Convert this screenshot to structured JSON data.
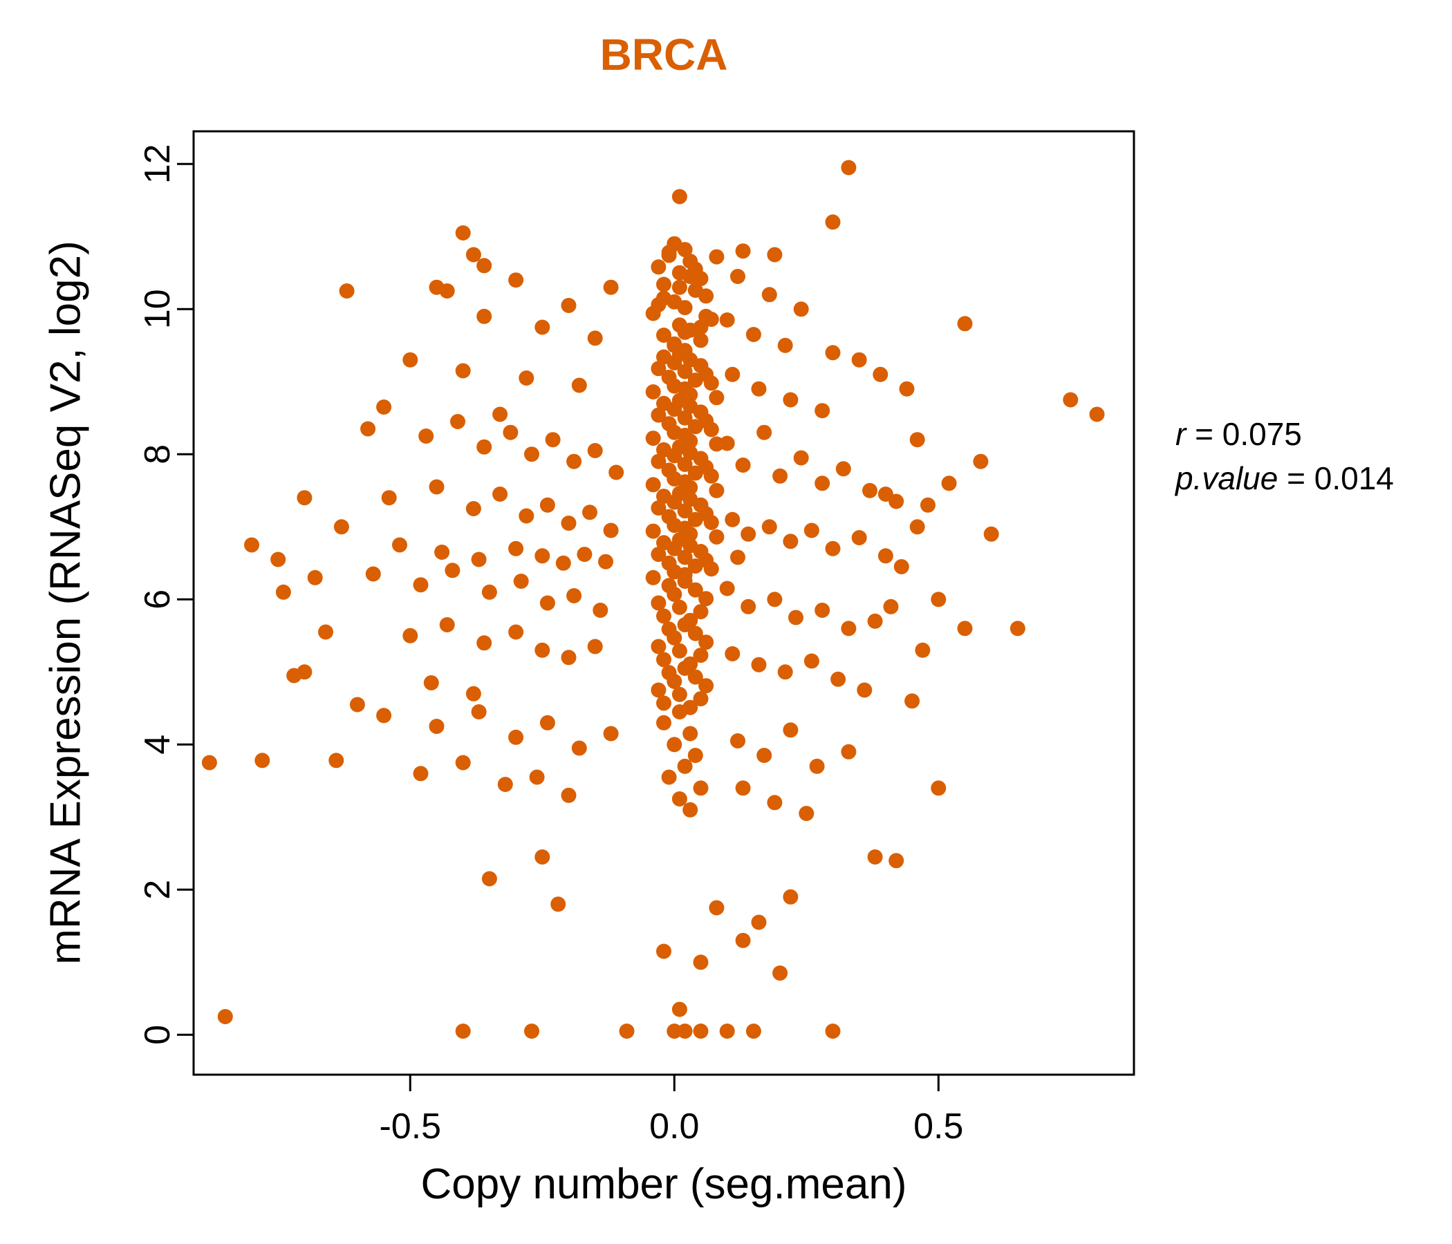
{
  "chart_data": {
    "type": "scatter",
    "title": "BRCA",
    "title_color": "#D95F02",
    "xlabel": "Copy number (seg.mean)",
    "ylabel": "mRNA Expression (RNASeq V2, log2)",
    "xlim": [
      -0.91,
      0.87
    ],
    "ylim": [
      -0.55,
      12.45
    ],
    "xticks": {
      "values": [
        -0.5,
        0.0,
        0.5
      ],
      "labels": [
        "-0.5",
        "0.0",
        "0.5"
      ]
    },
    "yticks": {
      "values": [
        0,
        2,
        4,
        6,
        8,
        10,
        12
      ],
      "labels": [
        "0",
        "2",
        "4",
        "6",
        "8",
        "10",
        "12"
      ]
    },
    "grid": false,
    "legend": "none",
    "point_color": "#D95F02",
    "annotation": {
      "r": 0.075,
      "p": 0.014,
      "r_label": "r",
      "r_value": " = 0.075",
      "p_label": "p.value",
      "p_value": " = 0.014"
    },
    "points": [
      [
        0,
        10.9
      ],
      [
        0.02,
        10.82
      ],
      [
        -0.01,
        10.74
      ],
      [
        0.03,
        10.66
      ],
      [
        -0.03,
        10.58
      ],
      [
        0.01,
        10.5
      ],
      [
        0.05,
        10.42
      ],
      [
        -0.02,
        10.34
      ],
      [
        0.04,
        10.26
      ],
      [
        0.06,
        10.18
      ],
      [
        0,
        10.1
      ],
      [
        0.02,
        10.02
      ],
      [
        -0.04,
        9.94
      ],
      [
        0.07,
        9.86
      ],
      [
        0.01,
        9.78
      ],
      [
        0.03,
        9.71
      ],
      [
        -0.02,
        9.64
      ],
      [
        0.05,
        9.57
      ],
      [
        0,
        9.5
      ],
      [
        0.02,
        9.43
      ],
      [
        -0.01,
        10.78
      ],
      [
        0.04,
        10.55
      ],
      [
        0.01,
        10.3
      ],
      [
        -0.03,
        10.06
      ],
      [
        0.06,
        9.9
      ],
      [
        0.02,
        9.68
      ],
      [
        0,
        9.52
      ],
      [
        0.03,
        10.45
      ],
      [
        -0.02,
        10.15
      ],
      [
        0.05,
        9.75
      ],
      [
        0.01,
        9.38
      ],
      [
        -0.02,
        9.34
      ],
      [
        0.03,
        9.3
      ],
      [
        0,
        9.26
      ],
      [
        0.05,
        9.22
      ],
      [
        -0.03,
        9.18
      ],
      [
        0.02,
        9.14
      ],
      [
        0.06,
        9.1
      ],
      [
        -0.01,
        9.06
      ],
      [
        0.04,
        9.02
      ],
      [
        0.07,
        8.98
      ],
      [
        0,
        8.94
      ],
      [
        0.02,
        8.9
      ],
      [
        -0.04,
        8.86
      ],
      [
        0.03,
        8.82
      ],
      [
        0.08,
        8.78
      ],
      [
        0.01,
        8.74
      ],
      [
        -0.02,
        8.7
      ],
      [
        0.03,
        8.66
      ],
      [
        0,
        8.62
      ],
      [
        0.05,
        8.58
      ],
      [
        -0.03,
        8.54
      ],
      [
        0.02,
        8.5
      ],
      [
        0.06,
        8.46
      ],
      [
        -0.01,
        8.42
      ],
      [
        0.04,
        8.38
      ],
      [
        0.07,
        8.34
      ],
      [
        0,
        8.3
      ],
      [
        0.02,
        8.26
      ],
      [
        -0.04,
        8.22
      ],
      [
        0.03,
        8.18
      ],
      [
        0.08,
        8.14
      ],
      [
        0.01,
        8.1
      ],
      [
        -0.02,
        8.06
      ],
      [
        0.03,
        8.02
      ],
      [
        0,
        7.98
      ],
      [
        0.05,
        7.94
      ],
      [
        -0.03,
        7.9
      ],
      [
        0.02,
        7.86
      ],
      [
        0.06,
        7.82
      ],
      [
        -0.01,
        7.78
      ],
      [
        0.04,
        7.74
      ],
      [
        0.07,
        7.7
      ],
      [
        0,
        7.66
      ],
      [
        0.02,
        7.62
      ],
      [
        -0.04,
        7.58
      ],
      [
        0.03,
        7.54
      ],
      [
        0.08,
        7.5
      ],
      [
        0.01,
        7.46
      ],
      [
        -0.02,
        7.42
      ],
      [
        0.03,
        7.38
      ],
      [
        0,
        7.34
      ],
      [
        0.05,
        7.3
      ],
      [
        -0.03,
        7.26
      ],
      [
        0.02,
        7.22
      ],
      [
        0.06,
        7.18
      ],
      [
        -0.01,
        7.14
      ],
      [
        0.04,
        7.1
      ],
      [
        0.07,
        7.06
      ],
      [
        0,
        7.02
      ],
      [
        0.02,
        6.98
      ],
      [
        -0.04,
        6.94
      ],
      [
        0.03,
        6.9
      ],
      [
        0.08,
        6.86
      ],
      [
        0.01,
        6.82
      ],
      [
        -0.02,
        6.78
      ],
      [
        0.03,
        6.74
      ],
      [
        0,
        6.7
      ],
      [
        0.05,
        6.66
      ],
      [
        -0.03,
        6.62
      ],
      [
        0.02,
        6.58
      ],
      [
        0.06,
        6.54
      ],
      [
        -0.01,
        6.5
      ],
      [
        0.04,
        6.46
      ],
      [
        0.07,
        6.42
      ],
      [
        0,
        6.38
      ],
      [
        0.02,
        6.34
      ],
      [
        -0.04,
        6.3
      ],
      [
        0.02,
        6.25
      ],
      [
        -0.01,
        6.19
      ],
      [
        0.04,
        6.13
      ],
      [
        0,
        6.07
      ],
      [
        0.06,
        6.01
      ],
      [
        -0.03,
        5.95
      ],
      [
        0.01,
        5.89
      ],
      [
        0.05,
        5.83
      ],
      [
        -0.02,
        5.77
      ],
      [
        0.03,
        5.71
      ],
      [
        0.02,
        5.65
      ],
      [
        -0.01,
        5.59
      ],
      [
        0.04,
        5.53
      ],
      [
        0,
        5.47
      ],
      [
        0.06,
        5.41
      ],
      [
        -0.03,
        5.35
      ],
      [
        0.01,
        5.29
      ],
      [
        0.05,
        5.23
      ],
      [
        -0.02,
        5.17
      ],
      [
        0.03,
        5.11
      ],
      [
        0.02,
        5.05
      ],
      [
        -0.01,
        4.99
      ],
      [
        0.04,
        4.93
      ],
      [
        0,
        4.87
      ],
      [
        0.06,
        4.81
      ],
      [
        -0.03,
        4.75
      ],
      [
        0.01,
        4.69
      ],
      [
        0.05,
        4.63
      ],
      [
        -0.02,
        4.57
      ],
      [
        0.03,
        4.51
      ],
      [
        0.01,
        4.45
      ],
      [
        -0.02,
        4.3
      ],
      [
        0.03,
        4.15
      ],
      [
        0,
        4
      ],
      [
        0.04,
        3.85
      ],
      [
        0.02,
        3.7
      ],
      [
        -0.01,
        3.55
      ],
      [
        0.05,
        3.4
      ],
      [
        0.01,
        3.25
      ],
      [
        0.03,
        3.1
      ],
      [
        -0.43,
        10.25
      ],
      [
        -0.3,
        10.4
      ],
      [
        -0.2,
        10.05
      ],
      [
        -0.12,
        10.3
      ],
      [
        0.12,
        10.45
      ],
      [
        0.18,
        10.2
      ],
      [
        0.24,
        10
      ],
      [
        -0.36,
        9.9
      ],
      [
        -0.25,
        9.75
      ],
      [
        -0.15,
        9.6
      ],
      [
        0.1,
        9.85
      ],
      [
        0.15,
        9.65
      ],
      [
        0.21,
        9.5
      ],
      [
        0.3,
        9.4
      ],
      [
        -0.5,
        9.3
      ],
      [
        -0.4,
        9.15
      ],
      [
        -0.28,
        9.05
      ],
      [
        -0.18,
        8.95
      ],
      [
        0.11,
        9.1
      ],
      [
        0.16,
        8.9
      ],
      [
        0.22,
        8.75
      ],
      [
        0.28,
        8.6
      ],
      [
        0.35,
        9.3
      ],
      [
        -0.55,
        8.65
      ],
      [
        -0.33,
        8.55
      ],
      [
        -0.58,
        8.35
      ],
      [
        -0.47,
        8.25
      ],
      [
        -0.41,
        8.45
      ],
      [
        -0.36,
        8.1
      ],
      [
        -0.31,
        8.3
      ],
      [
        -0.27,
        8
      ],
      [
        -0.23,
        8.2
      ],
      [
        -0.19,
        7.9
      ],
      [
        -0.15,
        8.05
      ],
      [
        -0.11,
        7.75
      ],
      [
        0.1,
        8.15
      ],
      [
        0.13,
        7.85
      ],
      [
        0.17,
        8.3
      ],
      [
        0.2,
        7.7
      ],
      [
        0.24,
        7.95
      ],
      [
        0.28,
        7.6
      ],
      [
        0.32,
        7.8
      ],
      [
        0.37,
        7.5
      ],
      [
        0.42,
        7.35
      ],
      [
        -0.54,
        7.4
      ],
      [
        -0.45,
        7.55
      ],
      [
        -0.38,
        7.25
      ],
      [
        -0.33,
        7.45
      ],
      [
        -0.28,
        7.15
      ],
      [
        -0.24,
        7.3
      ],
      [
        -0.2,
        7.05
      ],
      [
        -0.16,
        7.2
      ],
      [
        -0.12,
        6.95
      ],
      [
        0.11,
        7.1
      ],
      [
        0.14,
        6.9
      ],
      [
        0.18,
        7
      ],
      [
        0.22,
        6.8
      ],
      [
        0.26,
        6.95
      ],
      [
        0.3,
        6.7
      ],
      [
        0.35,
        6.85
      ],
      [
        0.4,
        6.6
      ],
      [
        -0.52,
        6.75
      ],
      [
        -0.44,
        6.65
      ],
      [
        -0.37,
        6.55
      ],
      [
        -0.3,
        6.7
      ],
      [
        -0.25,
        6.6
      ],
      [
        -0.21,
        6.5
      ],
      [
        -0.17,
        6.62
      ],
      [
        -0.13,
        6.52
      ],
      [
        0.12,
        6.58
      ],
      [
        -0.57,
        6.35
      ],
      [
        -0.48,
        6.2
      ],
      [
        -0.42,
        6.4
      ],
      [
        -0.35,
        6.1
      ],
      [
        -0.29,
        6.25
      ],
      [
        -0.24,
        5.95
      ],
      [
        -0.19,
        6.05
      ],
      [
        -0.14,
        5.85
      ],
      [
        0.1,
        6.15
      ],
      [
        0.14,
        5.9
      ],
      [
        0.19,
        6
      ],
      [
        0.23,
        5.75
      ],
      [
        0.28,
        5.85
      ],
      [
        0.33,
        5.6
      ],
      [
        0.38,
        5.7
      ],
      [
        -0.5,
        5.5
      ],
      [
        -0.43,
        5.65
      ],
      [
        -0.36,
        5.4
      ],
      [
        -0.3,
        5.55
      ],
      [
        -0.25,
        5.3
      ],
      [
        -0.2,
        5.2
      ],
      [
        -0.15,
        5.35
      ],
      [
        0.11,
        5.25
      ],
      [
        0.16,
        5.1
      ],
      [
        0.21,
        5
      ],
      [
        0.26,
        5.15
      ],
      [
        0.31,
        4.9
      ],
      [
        0.36,
        4.75
      ],
      [
        -0.46,
        4.85
      ],
      [
        -0.38,
        4.7
      ],
      [
        -0.55,
        4.4
      ],
      [
        -0.45,
        4.25
      ],
      [
        -0.37,
        4.45
      ],
      [
        -0.3,
        4.1
      ],
      [
        -0.24,
        4.3
      ],
      [
        -0.18,
        3.95
      ],
      [
        -0.12,
        4.15
      ],
      [
        0.12,
        4.05
      ],
      [
        0.17,
        3.85
      ],
      [
        0.22,
        4.2
      ],
      [
        0.27,
        3.7
      ],
      [
        0.33,
        3.9
      ],
      [
        -0.48,
        3.6
      ],
      [
        -0.4,
        3.75
      ],
      [
        -0.32,
        3.45
      ],
      [
        -0.26,
        3.55
      ],
      [
        -0.2,
        3.3
      ],
      [
        0.13,
        3.4
      ],
      [
        0.19,
        3.2
      ],
      [
        0.25,
        3.05
      ],
      [
        -0.88,
        3.75
      ],
      [
        -0.8,
        6.75
      ],
      [
        -0.78,
        3.78
      ],
      [
        -0.74,
        6.1
      ],
      [
        -0.72,
        4.95
      ],
      [
        -0.7,
        7.4
      ],
      [
        -0.68,
        6.3
      ],
      [
        -0.66,
        5.55
      ],
      [
        -0.64,
        3.78
      ],
      [
        -0.75,
        6.55
      ],
      [
        -0.62,
        10.25
      ],
      [
        -0.6,
        4.55
      ],
      [
        -0.85,
        0.25
      ],
      [
        -0.7,
        5
      ],
      [
        -0.63,
        7
      ],
      [
        0.46,
        8.2
      ],
      [
        0.48,
        7.3
      ],
      [
        0.5,
        6
      ],
      [
        0.52,
        7.6
      ],
      [
        0.55,
        9.8
      ],
      [
        0.55,
        5.6
      ],
      [
        0.58,
        7.9
      ],
      [
        0.6,
        6.9
      ],
      [
        0.65,
        5.6
      ],
      [
        0.75,
        8.75
      ],
      [
        0.8,
        8.55
      ],
      [
        0.45,
        4.6
      ],
      [
        0.47,
        5.3
      ],
      [
        0.5,
        3.4
      ],
      [
        0.42,
        2.4
      ],
      [
        0.38,
        2.45
      ],
      [
        0.44,
        8.9
      ],
      [
        0.4,
        7.45
      ],
      [
        0.43,
        6.45
      ],
      [
        0.46,
        7
      ],
      [
        0.41,
        5.9
      ],
      [
        0.39,
        9.1
      ],
      [
        -0.4,
        0.05
      ],
      [
        -0.27,
        0.05
      ],
      [
        -0.09,
        0.05
      ],
      [
        0,
        0.05
      ],
      [
        0.02,
        0.05
      ],
      [
        0.05,
        0.05
      ],
      [
        0.1,
        0.05
      ],
      [
        0.15,
        0.05
      ],
      [
        0.3,
        0.05
      ],
      [
        0.01,
        0.35
      ],
      [
        0.05,
        1
      ],
      [
        -0.02,
        1.15
      ],
      [
        0.13,
        1.3
      ],
      [
        0.16,
        1.55
      ],
      [
        0.08,
        1.75
      ],
      [
        -0.22,
        1.8
      ],
      [
        -0.35,
        2.15
      ],
      [
        -0.25,
        2.45
      ],
      [
        0.2,
        0.85
      ],
      [
        0.22,
        1.9
      ],
      [
        0.33,
        11.95
      ],
      [
        0.01,
        11.55
      ],
      [
        -0.4,
        11.05
      ],
      [
        0.3,
        11.2
      ],
      [
        -0.38,
        10.75
      ],
      [
        0.19,
        10.75
      ],
      [
        0.13,
        10.8
      ],
      [
        0.08,
        10.72
      ],
      [
        -0.36,
        10.6
      ],
      [
        -0.45,
        10.3
      ]
    ]
  }
}
